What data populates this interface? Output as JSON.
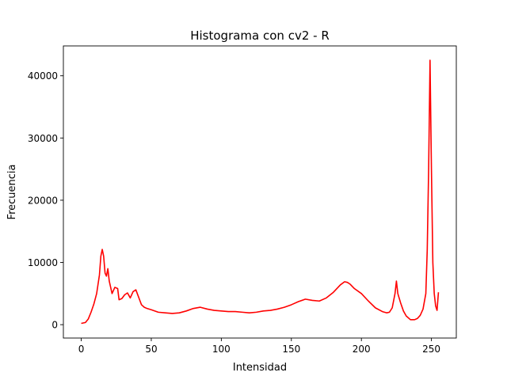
{
  "chart_data": {
    "type": "line",
    "title": "Histograma con cv2 - R",
    "xlabel": "Intensidad",
    "ylabel": "Frecuencia",
    "xlim": [
      -12.75,
      267.75
    ],
    "ylim": [
      -2150,
      44800
    ],
    "xticks": [
      0,
      50,
      100,
      150,
      200,
      250
    ],
    "yticks": [
      0,
      10000,
      20000,
      30000,
      40000
    ],
    "grid": false,
    "legend": "none",
    "series": [
      {
        "color": "#ff0000",
        "x": [
          0,
          3,
          5,
          7,
          9,
          11,
          13,
          14,
          15,
          16,
          17,
          18,
          19,
          20,
          22,
          24,
          26,
          27,
          29,
          31,
          33,
          35,
          37,
          39,
          41,
          43,
          45,
          47,
          50,
          55,
          60,
          65,
          70,
          75,
          80,
          85,
          90,
          95,
          100,
          105,
          110,
          115,
          120,
          125,
          130,
          135,
          140,
          145,
          150,
          155,
          160,
          165,
          170,
          175,
          180,
          185,
          188,
          190,
          192,
          195,
          200,
          205,
          210,
          215,
          218,
          220,
          222,
          224,
          225,
          226,
          228,
          230,
          232,
          235,
          238,
          240,
          242,
          244,
          246,
          247,
          248,
          249,
          250,
          251,
          252,
          253,
          254,
          255
        ],
        "y": [
          200,
          350,
          900,
          2000,
          3300,
          5000,
          8000,
          11000,
          12100,
          11000,
          8300,
          7800,
          9000,
          7000,
          5000,
          6000,
          5800,
          4000,
          4200,
          4800,
          5100,
          4300,
          5300,
          5600,
          4400,
          3200,
          2800,
          2600,
          2400,
          2000,
          1900,
          1800,
          1900,
          2200,
          2600,
          2800,
          2500,
          2300,
          2200,
          2100,
          2100,
          2000,
          1900,
          2000,
          2200,
          2300,
          2500,
          2800,
          3200,
          3700,
          4100,
          3900,
          3800,
          4300,
          5200,
          6400,
          6900,
          6800,
          6500,
          5800,
          5000,
          3800,
          2700,
          2100,
          1900,
          2000,
          2700,
          5000,
          7000,
          5000,
          3500,
          2200,
          1400,
          800,
          800,
          1000,
          1500,
          2500,
          5000,
          12000,
          25000,
          42500,
          25000,
          10000,
          5000,
          3000,
          2300,
          5200
        ]
      }
    ]
  }
}
